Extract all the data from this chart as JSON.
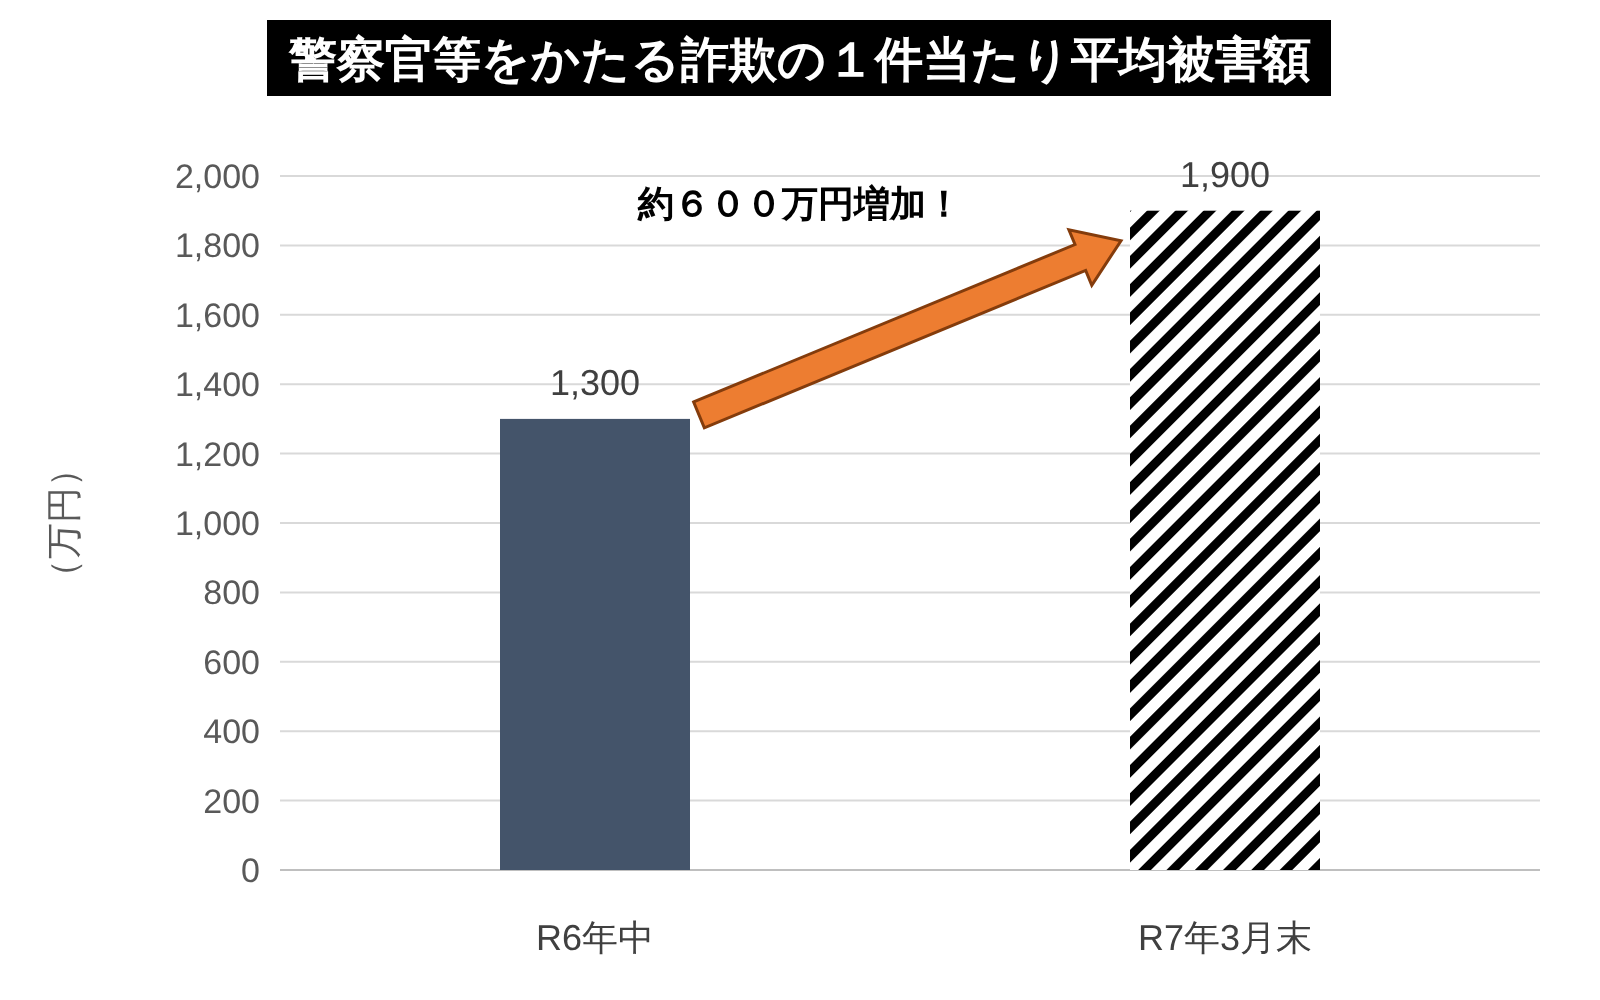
{
  "chart_data": {
    "type": "bar",
    "title": "警察官等をかたる詐欺の１件当たり平均被害額",
    "ylabel": "（万円）",
    "categories": [
      "R6年中",
      "R7年3月末"
    ],
    "values": [
      1300,
      1900
    ],
    "value_labels": [
      "1,300",
      "1,900"
    ],
    "colors": [
      "#44546a",
      "#000000"
    ],
    "ylim": [
      0,
      2000
    ],
    "yticks": [
      {
        "value": 0,
        "label": "0"
      },
      {
        "value": 200,
        "label": "200"
      },
      {
        "value": 400,
        "label": "400"
      },
      {
        "value": 600,
        "label": "600"
      },
      {
        "value": 800,
        "label": "800"
      },
      {
        "value": 1000,
        "label": "1,000"
      },
      {
        "value": 1200,
        "label": "1,200"
      },
      {
        "value": 1400,
        "label": "1,400"
      },
      {
        "value": 1600,
        "label": "1,600"
      },
      {
        "value": 1800,
        "label": "1,800"
      },
      {
        "value": 2000,
        "label": "2,000"
      }
    ],
    "grid": "y",
    "annotations": [
      "約６００万円増加！"
    ]
  }
}
